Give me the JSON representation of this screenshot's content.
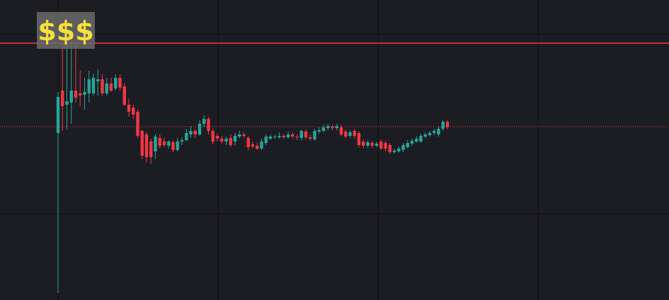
{
  "chart_data": {
    "type": "candlestick",
    "annotation": "$$$",
    "up_color": "#26a69a",
    "down_color": "#f23645",
    "background": "#1c1d22",
    "grid_color": "#0f1013",
    "grid": true,
    "xlim": [
      -13.12,
      138.08
    ],
    "ylim": [
      0,
      424
    ],
    "xgrid": [
      0,
      36.16,
      72.32,
      108.48
    ],
    "ygrid": [
      376,
      122
    ],
    "price_lines": [
      {
        "value": 363,
        "style": "solid",
        "color": "#f23645"
      },
      {
        "value": 245,
        "style": "dotted",
        "color": "#f23645"
      }
    ],
    "open": [
      236,
      296,
      276,
      279,
      296,
      292,
      290,
      292,
      292,
      309,
      312,
      292,
      306,
      299,
      314,
      302,
      276,
      272,
      266,
      239,
      234,
      224,
      210,
      229,
      224,
      218,
      223,
      212,
      224,
      226,
      234,
      239,
      234,
      249,
      256,
      239,
      232,
      228,
      224,
      229,
      224,
      231,
      234,
      229,
      220,
      218,
      214,
      222,
      228,
      230,
      230,
      232,
      230,
      234,
      231,
      229,
      238,
      230,
      227,
      238,
      239,
      243,
      245,
      243,
      244,
      238,
      232,
      239,
      236,
      224,
      218,
      222,
      218,
      224,
      222,
      219,
      209,
      210,
      212,
      216,
      221,
      224,
      224,
      231,
      233,
      236,
      234,
      242,
      252
    ],
    "high": [
      294,
      364,
      364,
      364,
      364,
      324,
      314,
      324,
      320,
      326,
      319,
      314,
      314,
      319,
      319,
      306,
      284,
      276,
      269,
      241,
      238,
      228,
      234,
      234,
      229,
      226,
      226,
      229,
      230,
      242,
      246,
      242,
      254,
      261,
      259,
      242,
      236,
      232,
      231,
      234,
      236,
      239,
      237,
      232,
      224,
      222,
      228,
      234,
      234,
      234,
      237,
      235,
      238,
      237,
      234,
      241,
      241,
      234,
      242,
      244,
      248,
      249,
      248,
      249,
      248,
      241,
      240,
      242,
      239,
      227,
      226,
      225,
      224,
      227,
      225,
      222,
      214,
      217,
      222,
      226,
      228,
      231,
      235,
      237,
      239,
      242,
      245,
      254,
      254
    ],
    "low": [
      10,
      239,
      242,
      249,
      279,
      274,
      269,
      279,
      289,
      289,
      289,
      289,
      294,
      296,
      296,
      274,
      259,
      256,
      229,
      199,
      194,
      192,
      199,
      214,
      216,
      214,
      209,
      210,
      219,
      224,
      229,
      229,
      232,
      244,
      234,
      220,
      224,
      221,
      219,
      216,
      219,
      228,
      229,
      212,
      214,
      212,
      212,
      219,
      226,
      228,
      228,
      228,
      228,
      228,
      226,
      226,
      227,
      225,
      225,
      235,
      237,
      240,
      240,
      240,
      231,
      228,
      229,
      228,
      216,
      214,
      215,
      215,
      216,
      212,
      210,
      206,
      207,
      208,
      209,
      214,
      218,
      222,
      222,
      229,
      231,
      233,
      231,
      239,
      241
    ],
    "close": [
      287,
      274,
      281,
      296,
      286,
      289,
      294,
      312,
      314,
      312,
      292,
      306,
      296,
      314,
      300,
      276,
      266,
      262,
      232,
      204,
      202,
      202,
      231,
      218,
      219,
      224,
      212,
      224,
      226,
      236,
      239,
      234,
      249,
      256,
      239,
      224,
      228,
      224,
      228,
      219,
      232,
      234,
      232,
      216,
      217,
      214,
      224,
      231,
      231,
      231,
      232,
      230,
      234,
      231,
      230,
      239,
      230,
      228,
      239,
      240,
      244,
      246,
      243,
      246,
      234,
      231,
      237,
      232,
      219,
      218,
      223,
      218,
      221,
      214,
      214,
      209,
      211,
      214,
      219,
      222,
      225,
      228,
      232,
      234,
      236,
      239,
      242,
      252,
      244
    ]
  }
}
